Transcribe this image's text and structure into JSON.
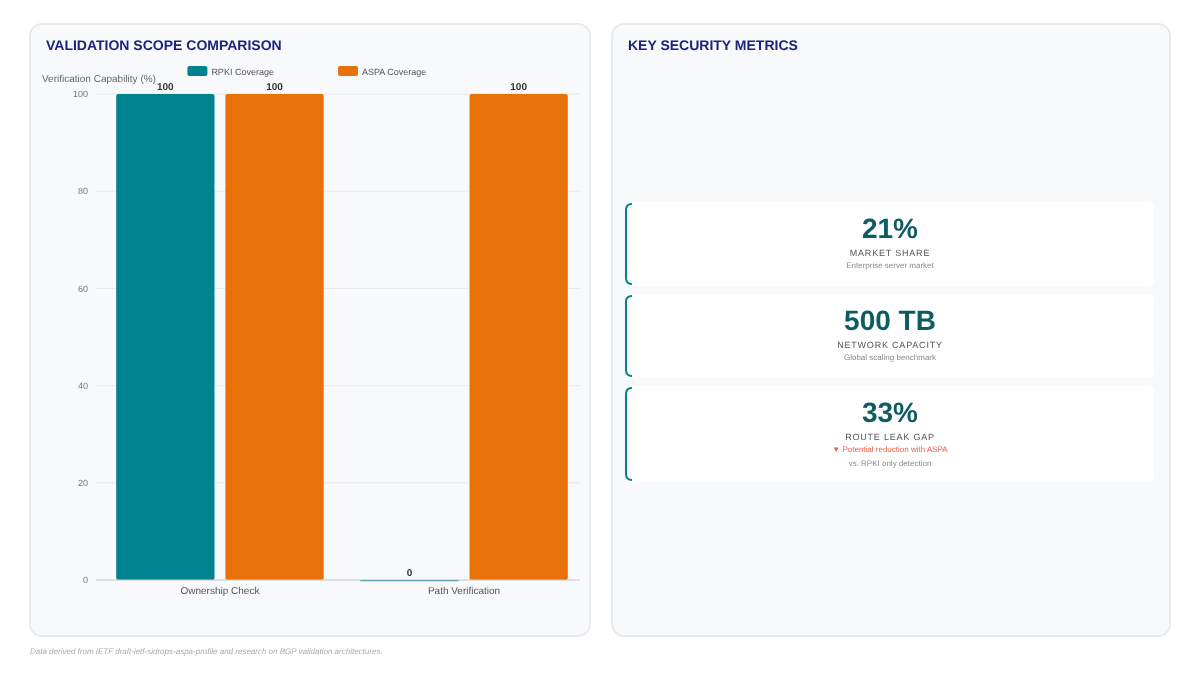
{
  "chart_data": [
    {
      "type": "bar",
      "title": "VALIDATION SCOPE COMPARISON",
      "ylabel": "Verification Capability (%)",
      "categories": [
        "Ownership Check",
        "Path Verification"
      ],
      "series": [
        {
          "name": "RPKI Coverage",
          "color": "#00838f",
          "values": [
            100,
            0
          ]
        },
        {
          "name": "ASPA Coverage",
          "color": "#e8710a",
          "values": [
            100,
            100
          ]
        }
      ],
      "ylim": [
        0,
        100
      ],
      "yticks": [
        0,
        20,
        40,
        60,
        80,
        100
      ],
      "grid": "y",
      "legend": "top",
      "data_labels": true,
      "annotations": [
        "Data derived from IETF draft-ietf-sidrops-aspa-profile and research on BGP validation architectures."
      ]
    },
    {
      "type": "other",
      "title": "KEY SECURITY METRICS",
      "annotations": [
        "21%",
        "MARKET SHARE",
        "Enterprise server market",
        "500 TB",
        "NETWORK CAPACITY",
        "Global scaling benchmark",
        "33%",
        "ROUTE LEAK GAP",
        "▼ Potential reduction with ASPA",
        "vs. RPKI only detection"
      ]
    }
  ]
}
